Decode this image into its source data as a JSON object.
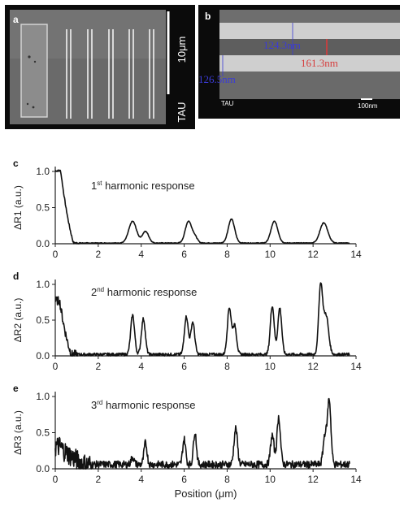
{
  "panels": {
    "a": {
      "label": "a",
      "scale_text": "10μm",
      "sample_text": "TAU"
    },
    "b": {
      "label": "b",
      "sample_text": "TAU",
      "scale_text": "100nm",
      "measurements": [
        "124.3nm",
        "161.3nm",
        "126.5nm"
      ],
      "colors": {
        "blue": "#3b3bd6",
        "red": "#d63b3b"
      }
    }
  },
  "chart_data": [
    {
      "type": "line",
      "panel": "c",
      "annotation": {
        "base": "1",
        "sup": "st",
        "rest": " harmonic response"
      },
      "ylabel": "ΔR1 (a.u.)",
      "xlabel": "",
      "xlim": [
        0,
        14
      ],
      "ylim": [
        0,
        1.0
      ],
      "xticks": [
        "0",
        "2",
        "4",
        "6",
        "8",
        "10",
        "12",
        "14"
      ],
      "yticks": [
        "0.0",
        "0.5",
        "1.0"
      ],
      "peaks": [
        {
          "x": 3.6,
          "h": 0.3,
          "w": 0.18
        },
        {
          "x": 4.2,
          "h": 0.16,
          "w": 0.15
        },
        {
          "x": 6.2,
          "h": 0.3,
          "w": 0.15
        },
        {
          "x": 6.5,
          "h": 0.08,
          "w": 0.12
        },
        {
          "x": 8.2,
          "h": 0.33,
          "w": 0.15
        },
        {
          "x": 10.2,
          "h": 0.3,
          "w": 0.16
        },
        {
          "x": 12.5,
          "h": 0.28,
          "w": 0.18
        }
      ],
      "baseline": 0.01,
      "step": {
        "high": 1.0,
        "x0": 0.25,
        "x1": 0.85
      },
      "noise": 0.005
    },
    {
      "type": "line",
      "panel": "d",
      "annotation": {
        "base": "2",
        "sup": "nd",
        "rest": " harmonic response"
      },
      "ylabel": "ΔR2 (a.u.)",
      "xlabel": "",
      "xlim": [
        0,
        14
      ],
      "ylim": [
        0,
        1.0
      ],
      "xticks": [
        "0",
        "2",
        "4",
        "6",
        "8",
        "10",
        "12",
        "14"
      ],
      "yticks": [
        "0.0",
        "0.5",
        "1.0"
      ],
      "peaks": [
        {
          "x": 3.6,
          "h": 0.55,
          "w": 0.09
        },
        {
          "x": 4.1,
          "h": 0.5,
          "w": 0.09
        },
        {
          "x": 6.1,
          "h": 0.53,
          "w": 0.09
        },
        {
          "x": 6.4,
          "h": 0.45,
          "w": 0.09
        },
        {
          "x": 8.1,
          "h": 0.65,
          "w": 0.09
        },
        {
          "x": 8.35,
          "h": 0.4,
          "w": 0.09
        },
        {
          "x": 10.1,
          "h": 0.68,
          "w": 0.09
        },
        {
          "x": 10.45,
          "h": 0.65,
          "w": 0.09
        },
        {
          "x": 12.35,
          "h": 0.95,
          "w": 0.09
        },
        {
          "x": 12.6,
          "h": 0.55,
          "w": 0.12
        }
      ],
      "baseline": 0.02,
      "step": {
        "high": 0.75,
        "x0": 0.2,
        "x1": 0.75
      },
      "noise": 0.02
    },
    {
      "type": "line",
      "panel": "e",
      "annotation": {
        "base": "3",
        "sup": "rd",
        "rest": " harmonic response"
      },
      "ylabel": "ΔR3 (a.u.)",
      "xlabel": "Position (μm)",
      "xlim": [
        0,
        14
      ],
      "ylim": [
        0,
        1.0
      ],
      "xticks": [
        "0",
        "2",
        "4",
        "6",
        "8",
        "10",
        "12",
        "14"
      ],
      "yticks": [
        "0.0",
        "0.5",
        "1.0"
      ],
      "peaks": [
        {
          "x": 3.6,
          "h": 0.1,
          "w": 0.07
        },
        {
          "x": 4.2,
          "h": 0.3,
          "w": 0.07
        },
        {
          "x": 6.0,
          "h": 0.35,
          "w": 0.07
        },
        {
          "x": 6.5,
          "h": 0.45,
          "w": 0.07
        },
        {
          "x": 8.4,
          "h": 0.5,
          "w": 0.08
        },
        {
          "x": 10.1,
          "h": 0.4,
          "w": 0.08
        },
        {
          "x": 10.4,
          "h": 0.65,
          "w": 0.08
        },
        {
          "x": 12.55,
          "h": 0.4,
          "w": 0.08
        },
        {
          "x": 12.75,
          "h": 0.9,
          "w": 0.08
        }
      ],
      "baseline": 0.06,
      "step": {
        "high": 0.25,
        "x0": 0.2,
        "x1": 1.4
      },
      "noise": 0.05
    }
  ],
  "colors": {
    "line": "#111111",
    "axis": "#222222",
    "sem_bg": "#4a4a4a"
  }
}
